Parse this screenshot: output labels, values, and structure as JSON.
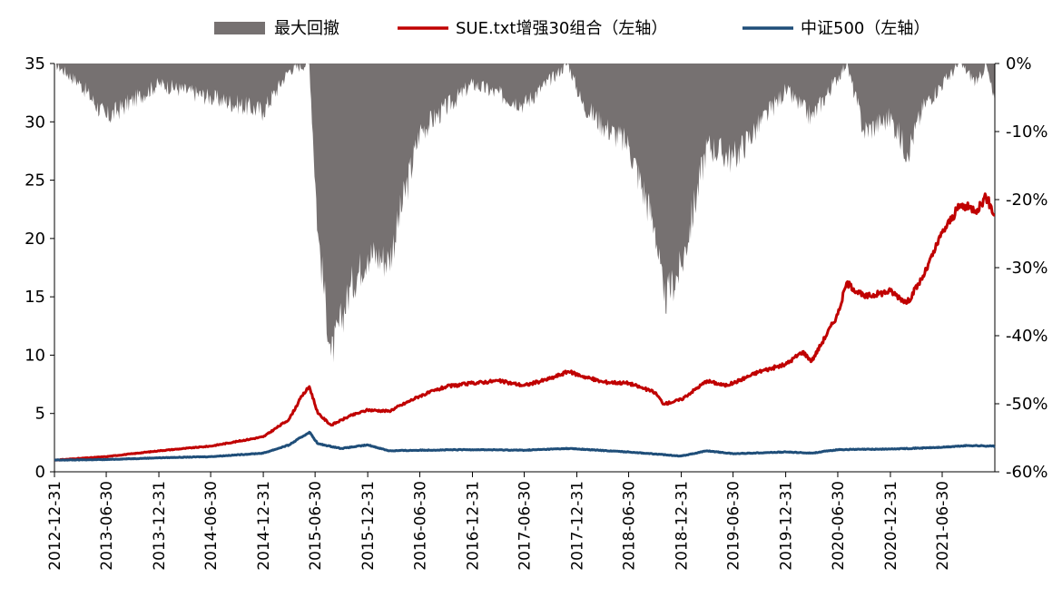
{
  "chart_data": {
    "type": "line",
    "title": "",
    "legend": {
      "placement": "top",
      "entries": [
        "最大回撤",
        "SUE.txt增强30组合（左轴）",
        "中证500（左轴）"
      ]
    },
    "colors": {
      "drawdown": "#767171",
      "portfolio": "#C00000",
      "index": "#1F4E79"
    },
    "left_axis": {
      "ylim": [
        0,
        35
      ],
      "ticks": [
        "0",
        "5",
        "10",
        "15",
        "20",
        "25",
        "30",
        "35"
      ]
    },
    "right_axis": {
      "ylim": [
        -60,
        0
      ],
      "ticks": [
        "0%",
        "-10%",
        "-20%",
        "-30%",
        "-40%",
        "-50%",
        "-60%"
      ]
    },
    "x_ticks": [
      "2012-12-31",
      "2013-06-30",
      "2013-12-31",
      "2014-06-30",
      "2014-12-31",
      "2015-06-30",
      "2015-12-31",
      "2016-06-30",
      "2016-12-31",
      "2017-06-30",
      "2017-12-31",
      "2018-06-30",
      "2018-12-31",
      "2019-06-30",
      "2019-12-31",
      "2020-06-30",
      "2020-12-31",
      "2021-06-30"
    ],
    "x_range": [
      "2012-12-31",
      "2021-12-31"
    ],
    "series": [
      {
        "name": "SUE.txt增强30组合（左轴）",
        "axis": "left",
        "points": [
          [
            "2012-12-31",
            1.0
          ],
          [
            "2013-03-31",
            1.15
          ],
          [
            "2013-06-30",
            1.3
          ],
          [
            "2013-09-30",
            1.55
          ],
          [
            "2013-12-31",
            1.8
          ],
          [
            "2014-03-31",
            2.0
          ],
          [
            "2014-06-30",
            2.2
          ],
          [
            "2014-09-30",
            2.6
          ],
          [
            "2014-12-31",
            3.0
          ],
          [
            "2015-03-31",
            4.5
          ],
          [
            "2015-05-15",
            6.5
          ],
          [
            "2015-06-10",
            7.3
          ],
          [
            "2015-07-10",
            5.0
          ],
          [
            "2015-08-25",
            4.0
          ],
          [
            "2015-10-31",
            4.8
          ],
          [
            "2015-12-31",
            5.3
          ],
          [
            "2016-03-15",
            5.2
          ],
          [
            "2016-06-30",
            6.5
          ],
          [
            "2016-09-30",
            7.3
          ],
          [
            "2016-12-31",
            7.6
          ],
          [
            "2017-03-31",
            7.8
          ],
          [
            "2017-06-30",
            7.4
          ],
          [
            "2017-09-30",
            8.0
          ],
          [
            "2017-11-30",
            8.6
          ],
          [
            "2018-01-20",
            8.2
          ],
          [
            "2018-03-31",
            7.7
          ],
          [
            "2018-06-30",
            7.6
          ],
          [
            "2018-09-30",
            6.8
          ],
          [
            "2018-10-31",
            5.8
          ],
          [
            "2018-12-31",
            6.2
          ],
          [
            "2019-03-31",
            7.8
          ],
          [
            "2019-05-31",
            7.4
          ],
          [
            "2019-06-30",
            7.6
          ],
          [
            "2019-09-30",
            8.6
          ],
          [
            "2019-12-31",
            9.2
          ],
          [
            "2020-02-28",
            10.3
          ],
          [
            "2020-03-31",
            9.5
          ],
          [
            "2020-06-30",
            13.5
          ],
          [
            "2020-07-31",
            16.2
          ],
          [
            "2020-09-30",
            15.0
          ],
          [
            "2020-12-31",
            15.5
          ],
          [
            "2021-02-28",
            14.5
          ],
          [
            "2021-04-30",
            17.0
          ],
          [
            "2021-06-30",
            20.5
          ],
          [
            "2021-08-31",
            22.8
          ],
          [
            "2021-10-31",
            22.5
          ],
          [
            "2021-11-30",
            23.6
          ],
          [
            "2021-12-31",
            22.0
          ]
        ]
      },
      {
        "name": "中证500（左轴）",
        "axis": "left",
        "points": [
          [
            "2012-12-31",
            1.0
          ],
          [
            "2013-06-30",
            1.05
          ],
          [
            "2013-12-31",
            1.2
          ],
          [
            "2014-06-30",
            1.3
          ],
          [
            "2014-12-31",
            1.6
          ],
          [
            "2015-03-31",
            2.3
          ],
          [
            "2015-06-10",
            3.4
          ],
          [
            "2015-07-10",
            2.4
          ],
          [
            "2015-09-30",
            2.0
          ],
          [
            "2015-12-31",
            2.3
          ],
          [
            "2016-03-15",
            1.8
          ],
          [
            "2016-06-30",
            1.85
          ],
          [
            "2016-12-31",
            1.9
          ],
          [
            "2017-06-30",
            1.85
          ],
          [
            "2017-11-30",
            2.0
          ],
          [
            "2018-06-30",
            1.7
          ],
          [
            "2018-12-31",
            1.35
          ],
          [
            "2019-03-31",
            1.8
          ],
          [
            "2019-06-30",
            1.55
          ],
          [
            "2019-12-31",
            1.7
          ],
          [
            "2020-03-31",
            1.6
          ],
          [
            "2020-06-30",
            1.9
          ],
          [
            "2020-12-31",
            1.95
          ],
          [
            "2021-06-30",
            2.1
          ],
          [
            "2021-09-30",
            2.25
          ],
          [
            "2021-12-31",
            2.2
          ]
        ]
      },
      {
        "name": "最大回撤",
        "axis": "right",
        "type": "area",
        "points": [
          [
            "2012-12-31",
            0
          ],
          [
            "2013-03-31",
            -3
          ],
          [
            "2013-06-30",
            -8
          ],
          [
            "2013-12-31",
            -3
          ],
          [
            "2014-06-30",
            -5
          ],
          [
            "2014-12-31",
            -7
          ],
          [
            "2015-03-31",
            -1
          ],
          [
            "2015-06-10",
            0
          ],
          [
            "2015-07-10",
            -25
          ],
          [
            "2015-08-25",
            -43
          ],
          [
            "2015-10-31",
            -33
          ],
          [
            "2015-12-31",
            -28
          ],
          [
            "2016-03-15",
            -29
          ],
          [
            "2016-06-30",
            -10
          ],
          [
            "2016-12-31",
            -3
          ],
          [
            "2017-06-30",
            -6
          ],
          [
            "2017-11-30",
            0
          ],
          [
            "2018-01-20",
            -6
          ],
          [
            "2018-03-31",
            -9
          ],
          [
            "2018-06-30",
            -12
          ],
          [
            "2018-09-30",
            -24
          ],
          [
            "2018-10-31",
            -35
          ],
          [
            "2018-12-31",
            -30
          ],
          [
            "2019-03-31",
            -12
          ],
          [
            "2019-06-30",
            -14
          ],
          [
            "2019-12-31",
            -4
          ],
          [
            "2020-03-31",
            -8
          ],
          [
            "2020-07-31",
            0
          ],
          [
            "2020-09-30",
            -10
          ],
          [
            "2020-12-31",
            -8
          ],
          [
            "2021-02-28",
            -13
          ],
          [
            "2021-04-30",
            -6
          ],
          [
            "2021-08-31",
            0
          ],
          [
            "2021-10-31",
            -3
          ],
          [
            "2021-11-30",
            0
          ],
          [
            "2021-12-31",
            -6
          ]
        ]
      }
    ]
  }
}
